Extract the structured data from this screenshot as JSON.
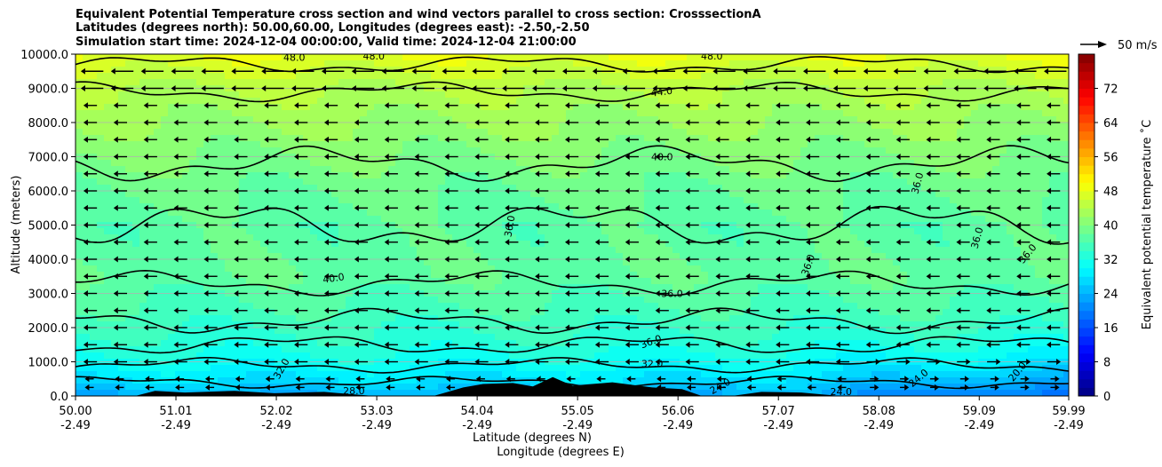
{
  "chart_data": {
    "type": "heatmap",
    "title_lines": [
      "Equivalent Potential Temperature cross section and wind vectors parallel to cross section: CrosssectionA",
      "Latitudes (degrees north): 50.00,60.00, Longitudes (degrees east): -2.50,-2.50",
      "Simulation start time: 2024-12-04 00:00:00, Valid time: 2024-12-04 21:00:00"
    ],
    "xlabel_lat": "Latitude (degrees N)",
    "xlabel_lon": "Longitude (degrees E)",
    "ylabel": "Altitude (meters)",
    "x_ticks_lat": [
      "50.00",
      "51.01",
      "52.02",
      "53.03",
      "54.04",
      "55.05",
      "56.06",
      "57.07",
      "58.08",
      "59.09",
      "59.99"
    ],
    "x_ticks_lon": [
      "-2.49",
      "-2.49",
      "-2.49",
      "-2.49",
      "-2.49",
      "-2.49",
      "-2.49",
      "-2.49",
      "-2.49",
      "-2.49",
      "-2.49"
    ],
    "x_tick_values": [
      50.0,
      51.01,
      52.02,
      53.03,
      54.04,
      55.05,
      56.06,
      57.07,
      58.08,
      59.09,
      59.99
    ],
    "xlim": [
      50.0,
      59.99
    ],
    "y_ticks": [
      "0.0",
      "1000.0",
      "2000.0",
      "3000.0",
      "4000.0",
      "5000.0",
      "6000.0",
      "7000.0",
      "8000.0",
      "9000.0",
      "10000.0"
    ],
    "y_tick_values": [
      0,
      1000,
      2000,
      3000,
      4000,
      5000,
      6000,
      7000,
      8000,
      9000,
      10000
    ],
    "ylim": [
      0,
      10000
    ],
    "grid": true,
    "colorbar": {
      "label": "Equivalent potential temperature ˚C",
      "ticks": [
        "0",
        "8",
        "16",
        "24",
        "32",
        "40",
        "48",
        "56",
        "64",
        "72"
      ],
      "tick_values": [
        0,
        8,
        16,
        24,
        32,
        40,
        48,
        56,
        64,
        72
      ],
      "range": [
        0,
        80
      ],
      "colormap": "jet"
    },
    "wind_key_label": "50 m/s",
    "field_levels": [
      {
        "altitude": 0,
        "value": 24
      },
      {
        "altitude": 500,
        "value": 28
      },
      {
        "altitude": 1000,
        "value": 31
      },
      {
        "altitude": 1500,
        "value": 33
      },
      {
        "altitude": 2500,
        "value": 35.5
      },
      {
        "altitude": 3500,
        "value": 37.5
      },
      {
        "altitude": 5000,
        "value": 37
      },
      {
        "altitude": 6500,
        "value": 39
      },
      {
        "altitude": 8000,
        "value": 42
      },
      {
        "altitude": 9000,
        "value": 44
      },
      {
        "altitude": 10000,
        "value": 48
      }
    ],
    "contours": [
      {
        "value": "48.0",
        "base_altitude": 9700,
        "amp": 180
      },
      {
        "value": "44.0",
        "base_altitude": 8900,
        "amp": 200
      },
      {
        "value": "40.0",
        "base_altitude": 6800,
        "amp": 350
      },
      {
        "value": "36.0",
        "base_altitude": 5000,
        "amp": 450
      },
      {
        "value": "40.0",
        "base_altitude": 3300,
        "amp": 250
      },
      {
        "value": "36.0",
        "base_altitude": 2200,
        "amp": 250
      },
      {
        "value": "36.0",
        "base_altitude": 1500,
        "amp": 200
      },
      {
        "value": "32.0",
        "base_altitude": 900,
        "amp": 150
      },
      {
        "value": "28.0",
        "base_altitude": 400,
        "amp": 120
      }
    ],
    "contour_labels": [
      {
        "text": "48.0",
        "lat": 52.2,
        "alt": 9800,
        "angle": 0
      },
      {
        "text": "48.0",
        "lat": 53.0,
        "alt": 9850,
        "angle": 0
      },
      {
        "text": "48.0",
        "lat": 56.4,
        "alt": 9850,
        "angle": 0
      },
      {
        "text": "44.0",
        "lat": 55.9,
        "alt": 8800,
        "angle": -8
      },
      {
        "text": "40.0",
        "lat": 55.9,
        "alt": 6900,
        "angle": 0
      },
      {
        "text": "36.0",
        "lat": 54.4,
        "alt": 4950,
        "angle": -80
      },
      {
        "text": "40.0",
        "lat": 52.6,
        "alt": 3350,
        "angle": -8
      },
      {
        "text": "36.0",
        "lat": 56.0,
        "alt": 2900,
        "angle": 0
      },
      {
        "text": "36.0",
        "lat": 55.8,
        "alt": 1500,
        "angle": -20
      },
      {
        "text": "32.0",
        "lat": 55.8,
        "alt": 850,
        "angle": 0
      },
      {
        "text": "32.0",
        "lat": 52.1,
        "alt": 750,
        "angle": -60
      },
      {
        "text": "28.0",
        "lat": 52.8,
        "alt": 50,
        "angle": 0
      },
      {
        "text": "24.0",
        "lat": 56.5,
        "alt": 200,
        "angle": -30
      },
      {
        "text": "24.0",
        "lat": 57.7,
        "alt": 20,
        "angle": 0
      },
      {
        "text": "24.0",
        "lat": 58.5,
        "alt": 450,
        "angle": -40
      },
      {
        "text": "20.0",
        "lat": 59.5,
        "alt": 650,
        "angle": -50
      },
      {
        "text": "36.0",
        "lat": 57.4,
        "alt": 3800,
        "angle": -70
      },
      {
        "text": "36.0",
        "lat": 58.5,
        "alt": 6200,
        "angle": -75
      },
      {
        "text": "36.0",
        "lat": 59.1,
        "alt": 4600,
        "angle": -75
      },
      {
        "text": "36.0",
        "lat": 59.6,
        "alt": 4100,
        "angle": -50
      }
    ],
    "terrain": [
      {
        "lat": 50.0,
        "alt": 0
      },
      {
        "lat": 50.6,
        "alt": 0
      },
      {
        "lat": 50.8,
        "alt": 150
      },
      {
        "lat": 51.1,
        "alt": 100
      },
      {
        "lat": 51.6,
        "alt": 150
      },
      {
        "lat": 52.0,
        "alt": 80
      },
      {
        "lat": 52.5,
        "alt": 120
      },
      {
        "lat": 53.0,
        "alt": 0
      },
      {
        "lat": 53.6,
        "alt": 0
      },
      {
        "lat": 53.9,
        "alt": 250
      },
      {
        "lat": 54.1,
        "alt": 350
      },
      {
        "lat": 54.4,
        "alt": 380
      },
      {
        "lat": 54.6,
        "alt": 280
      },
      {
        "lat": 54.8,
        "alt": 550
      },
      {
        "lat": 55.0,
        "alt": 300
      },
      {
        "lat": 55.4,
        "alt": 400
      },
      {
        "lat": 55.8,
        "alt": 250
      },
      {
        "lat": 56.1,
        "alt": 200
      },
      {
        "lat": 56.3,
        "alt": 0
      },
      {
        "lat": 56.6,
        "alt": 0
      },
      {
        "lat": 56.9,
        "alt": 120
      },
      {
        "lat": 57.3,
        "alt": 100
      },
      {
        "lat": 57.5,
        "alt": 50
      },
      {
        "lat": 57.7,
        "alt": 0
      },
      {
        "lat": 59.99,
        "alt": 0
      }
    ],
    "wind_rows": [
      250,
      500,
      1000,
      1500,
      2000,
      2500,
      3000,
      3500,
      4000,
      4500,
      5000,
      5500,
      6000,
      6500,
      7000,
      7500,
      8000,
      8500,
      9000,
      9500
    ]
  }
}
